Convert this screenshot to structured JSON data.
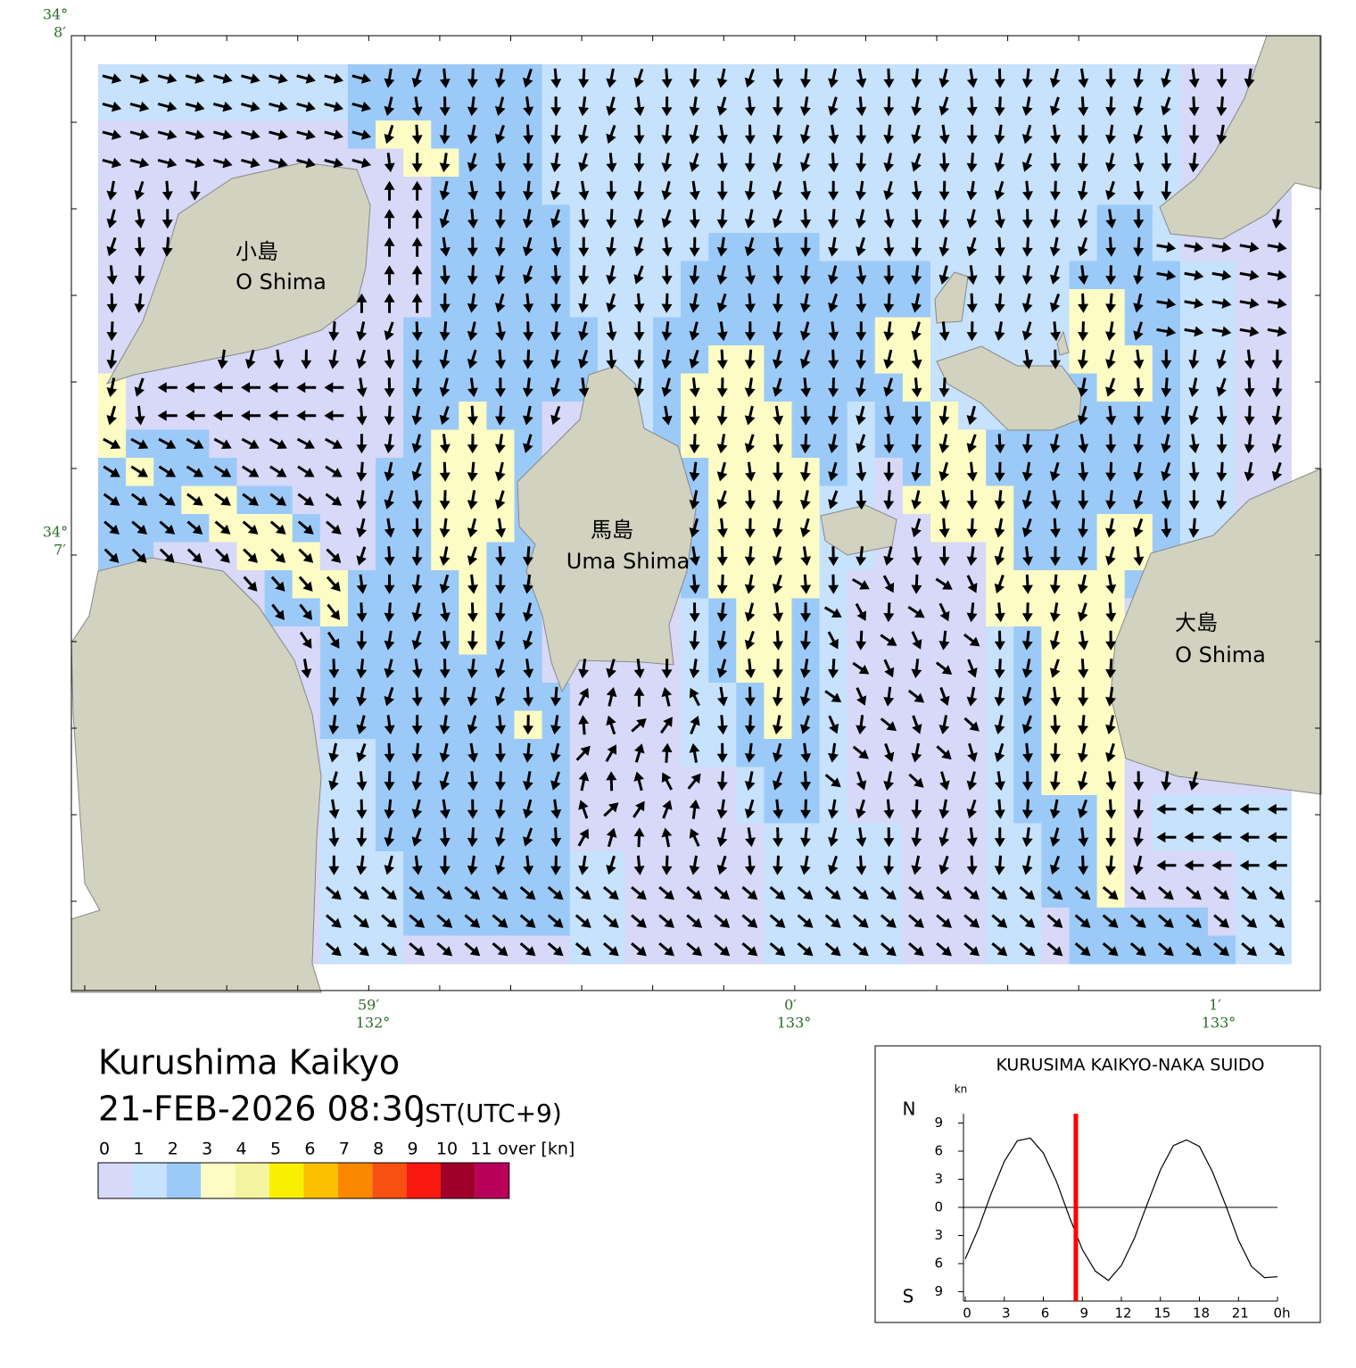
{
  "map": {
    "title": "Kurushima Kaikyo",
    "datetime": "21-FEB-2026 08:30",
    "timezone": "JST(UTC+9)",
    "places": [
      {
        "ja": "小島",
        "en": "O Shima"
      },
      {
        "ja": "馬島",
        "en": "Uma Shima"
      },
      {
        "ja": "大島",
        "en": "O Shima"
      }
    ],
    "lat_labels": [
      {
        "deg": "34°",
        "min": "8′"
      },
      {
        "deg": "34°",
        "min": "7′"
      }
    ],
    "lon_labels": [
      {
        "min": "59′",
        "deg": "132°"
      },
      {
        "min": "0′",
        "deg": "133°"
      },
      {
        "min": "1′",
        "deg": "133°"
      }
    ]
  },
  "legend": {
    "labels": [
      "0",
      "1",
      "2",
      "3",
      "4",
      "5",
      "6",
      "7",
      "8",
      "9",
      "10",
      "11"
    ],
    "unit": "over [kn]",
    "colors": [
      "#d8d8f8",
      "#c6e2fc",
      "#9ccaf8",
      "#fcfcc4",
      "#f4f4a0",
      "#f8f000",
      "#fcc000",
      "#fc8800",
      "#f85010",
      "#f81810",
      "#a00028",
      "#b80058"
    ]
  },
  "chart_data": {
    "type": "line",
    "title": "KURUSIMA KAIKYO-NAKA SUIDO",
    "y_unit": "kn",
    "north": "N",
    "south": "S",
    "x": [
      0,
      1,
      2,
      3,
      4,
      5,
      6,
      7,
      8,
      9,
      10,
      11,
      12,
      13,
      14,
      15,
      16,
      17,
      18,
      19,
      20,
      21,
      22,
      23,
      24
    ],
    "series": [
      {
        "color": "#000000",
        "values": [
          -5.5,
          -2.3,
          1.5,
          4.9,
          7.1,
          7.4,
          5.8,
          2.8,
          -1.0,
          -4.5,
          -6.8,
          -7.8,
          -6.2,
          -3.3,
          0.4,
          4.0,
          6.6,
          7.2,
          6.5,
          3.8,
          0.3,
          -3.5,
          -6.3,
          -7.5,
          -7.4
        ]
      }
    ],
    "marker": {
      "value": 8.5,
      "color": "#ff0000"
    },
    "xlim": [
      0,
      24
    ],
    "xticks": [
      0,
      3,
      6,
      9,
      12,
      15,
      18,
      21,
      {
        "value": 24,
        "label": "0h"
      }
    ],
    "ylim": [
      -10,
      10
    ],
    "yticks": [
      9,
      6,
      3,
      0,
      {
        "value": -3,
        "label": "3"
      },
      {
        "value": -6,
        "label": "6"
      },
      {
        "value": -9,
        "label": "9"
      }
    ]
  }
}
